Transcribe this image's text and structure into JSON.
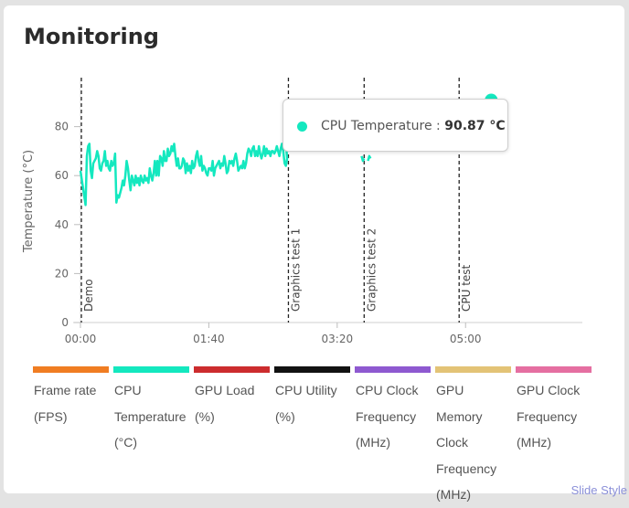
{
  "page": {
    "title": "Monitoring",
    "slide_style_label": "Slide Style"
  },
  "tooltip": {
    "series": "CPU Temperature",
    "separator": " : ",
    "value": "90.87 °C",
    "color": "#14e8bf"
  },
  "legend": [
    {
      "label": "Frame rate (FPS)",
      "color": "#f07d22"
    },
    {
      "label": "CPU Temperature (°C)",
      "color": "#14e8bf"
    },
    {
      "label": "GPU Load (%)",
      "color": "#cc2c2e"
    },
    {
      "label": "CPU Utility (%)",
      "color": "#121212"
    },
    {
      "label": "CPU Clock Frequency (MHz)",
      "color": "#8e59d0"
    },
    {
      "label": "GPU Memory Clock Frequency (MHz)",
      "color": "#e3c376"
    },
    {
      "label": "GPU Clock Frequency (MHz)",
      "color": "#e56fa1"
    }
  ],
  "chart_data": {
    "type": "line",
    "ylabel": "Temperature (°C)",
    "xlabel": "",
    "ylim": [
      0,
      100
    ],
    "yticks": [
      0,
      20,
      40,
      60,
      80
    ],
    "x_unit": "seconds",
    "xlim": [
      0,
      391
    ],
    "xticks": [
      {
        "value": 0,
        "label": "00:00"
      },
      {
        "value": 100,
        "label": "01:40"
      },
      {
        "value": 200,
        "label": "03:20"
      },
      {
        "value": 300,
        "label": "05:00"
      }
    ],
    "markers": [
      {
        "x": 0,
        "label": "Demo"
      },
      {
        "x": 162,
        "label": "Graphics test 1"
      },
      {
        "x": 221,
        "label": "Graphics test 2"
      },
      {
        "x": 295,
        "label": "CPU test"
      }
    ],
    "series": [
      {
        "name": "CPU Temperature",
        "color": "#14e8bf",
        "x": [
          0,
          2,
          4,
          5,
          6,
          7,
          8,
          9,
          10,
          11,
          12,
          13,
          14,
          15,
          16,
          17,
          18,
          19,
          20,
          21,
          22,
          23,
          24,
          25,
          26,
          27,
          28,
          29,
          30,
          31,
          32,
          33,
          34,
          35,
          36,
          37,
          38,
          39,
          40,
          41,
          42,
          43,
          44,
          45,
          46,
          47,
          48,
          49,
          50,
          51,
          52,
          53,
          54,
          55,
          56,
          57,
          58,
          59,
          60,
          61,
          62,
          63,
          64,
          65,
          66,
          67,
          68,
          69,
          70,
          71,
          72,
          73,
          74,
          75,
          76,
          77,
          78,
          79,
          80,
          81,
          82,
          83,
          84,
          85,
          86,
          87,
          88,
          89,
          90,
          91,
          92,
          93,
          94,
          95,
          96,
          97,
          98,
          99,
          100,
          101,
          102,
          103,
          104,
          105,
          106,
          107,
          108,
          109,
          110,
          111,
          112,
          113,
          114,
          115,
          116,
          117,
          118,
          119,
          120,
          121,
          122,
          123,
          124,
          125,
          126,
          127,
          128,
          129,
          130,
          131,
          132,
          133,
          134,
          135,
          136,
          137,
          138,
          139,
          140,
          141,
          142,
          143,
          144,
          145,
          146,
          147,
          148,
          149,
          150,
          151,
          152,
          153,
          154,
          155,
          156,
          157,
          158,
          159,
          160,
          161,
          160,
          null,
          219,
          220,
          221,
          null,
          224,
          225,
          226,
          null,
          296,
          298,
          300,
          302,
          304,
          306,
          308,
          310,
          312,
          314,
          316,
          318,
          320
        ],
        "y": [
          62,
          55,
          48,
          68,
          72,
          73,
          62,
          59,
          65,
          66,
          67,
          70,
          68,
          63,
          62,
          65,
          66,
          70,
          64,
          66,
          63,
          62,
          66,
          64,
          65,
          69,
          49,
          52,
          51,
          53,
          55,
          58,
          56,
          60,
          66,
          63,
          58,
          54,
          60,
          58,
          56,
          60,
          57,
          59,
          56,
          60,
          58,
          57,
          60,
          58,
          59,
          57,
          63,
          60,
          58,
          61,
          66,
          60,
          66,
          60,
          68,
          67,
          64,
          70,
          66,
          66,
          71,
          68,
          69,
          72,
          70,
          73,
          68,
          64,
          67,
          63,
          63,
          64,
          67,
          66,
          61,
          65,
          62,
          64,
          61,
          66,
          63,
          64,
          68,
          70,
          66,
          64,
          68,
          62,
          64,
          63,
          61,
          60,
          63,
          63,
          62,
          66,
          60,
          63,
          64,
          65,
          66,
          63,
          65,
          64,
          68,
          65,
          61,
          62,
          66,
          65,
          66,
          64,
          67,
          69,
          66,
          62,
          63,
          64,
          63,
          66,
          63,
          65,
          69,
          71,
          70,
          68,
          71,
          72,
          68,
          70,
          68,
          72,
          69,
          67,
          69,
          72,
          68,
          71,
          69,
          70,
          68,
          70,
          70,
          69,
          70,
          72,
          70,
          68,
          71,
          73,
          70,
          65,
          64,
          67,
          73,
          null,
          68,
          66,
          67,
          null,
          66,
          68,
          67,
          null,
          70,
          75,
          78,
          82,
          80,
          84,
          82,
          86,
          85,
          87,
          86,
          88,
          90.87
        ]
      }
    ]
  }
}
